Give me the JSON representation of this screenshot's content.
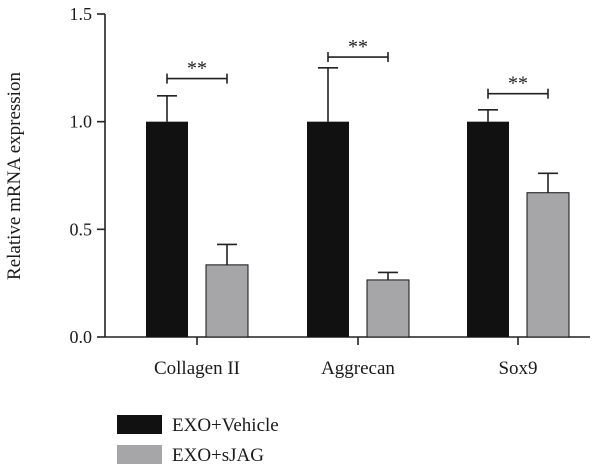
{
  "chart_data": {
    "type": "bar",
    "ylabel": "Relative mRNA expression",
    "ylim": [
      0,
      1.5
    ],
    "yticks": [
      "0.0",
      "0.5",
      "1.0",
      "1.5"
    ],
    "ytick_values": [
      0,
      0.5,
      1.0,
      1.5
    ],
    "categories": [
      "Collagen II",
      "Aggrecan",
      "Sox9"
    ],
    "series": [
      {
        "name": "EXO+Vehicle",
        "color": "#111111",
        "values": [
          1.0,
          1.0,
          1.0
        ],
        "errors": [
          0.12,
          0.25,
          0.055
        ]
      },
      {
        "name": "EXO+sJAG",
        "color": "#a6a6a8",
        "values": [
          0.335,
          0.265,
          0.67
        ],
        "errors": [
          0.095,
          0.035,
          0.09
        ]
      }
    ],
    "annotations": [
      {
        "text": "**",
        "category": "Collagen II",
        "y": 1.2
      },
      {
        "text": "**",
        "category": "Aggrecan",
        "y": 1.3
      },
      {
        "text": "**",
        "category": "Sox9",
        "y": 1.13
      }
    ],
    "legend_position": "bottom-left",
    "grid": false
  }
}
